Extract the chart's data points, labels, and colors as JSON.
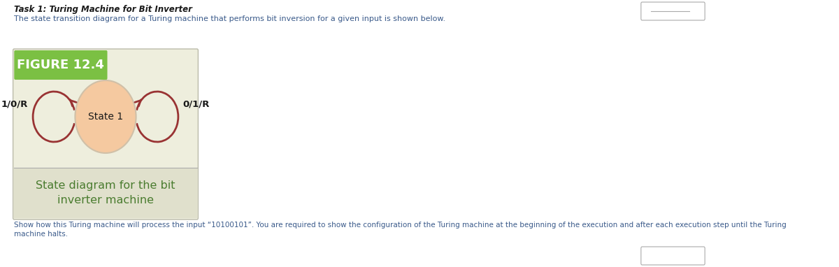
{
  "title_bold": "Task 1: Turing Machine for Bit Inverter",
  "subtitle": "The state transition diagram for a Turing machine that performs bit inversion for a given input is shown below.",
  "figure_label": "FIGURE 12.4",
  "figure_label_bg": "#7bc043",
  "figure_bg": "#eeeedd",
  "caption_bg": "#e0e0cc",
  "caption_text": "State diagram for the bit\ninverter machine",
  "caption_color": "#4a7c2f",
  "state_label": "State 1",
  "state_fill": "#f5c9a0",
  "state_edge": "#d0c0a8",
  "loop_color": "#993333",
  "loop_left_label": "1/0/R",
  "loop_right_label": "0/1/R",
  "bottom_text_1": "Show how this Turing machine will process the input “10100101”. You are required to show the configuration of the Turing machine at the beginning of the execution and after each execution step until the Turing",
  "bottom_text_2": "machine halts.",
  "text_color_dark": "#1a1a1a",
  "text_color_blue": "#3a5a8a",
  "bg_white": "#ffffff",
  "divider_color": "#aaaaaa"
}
